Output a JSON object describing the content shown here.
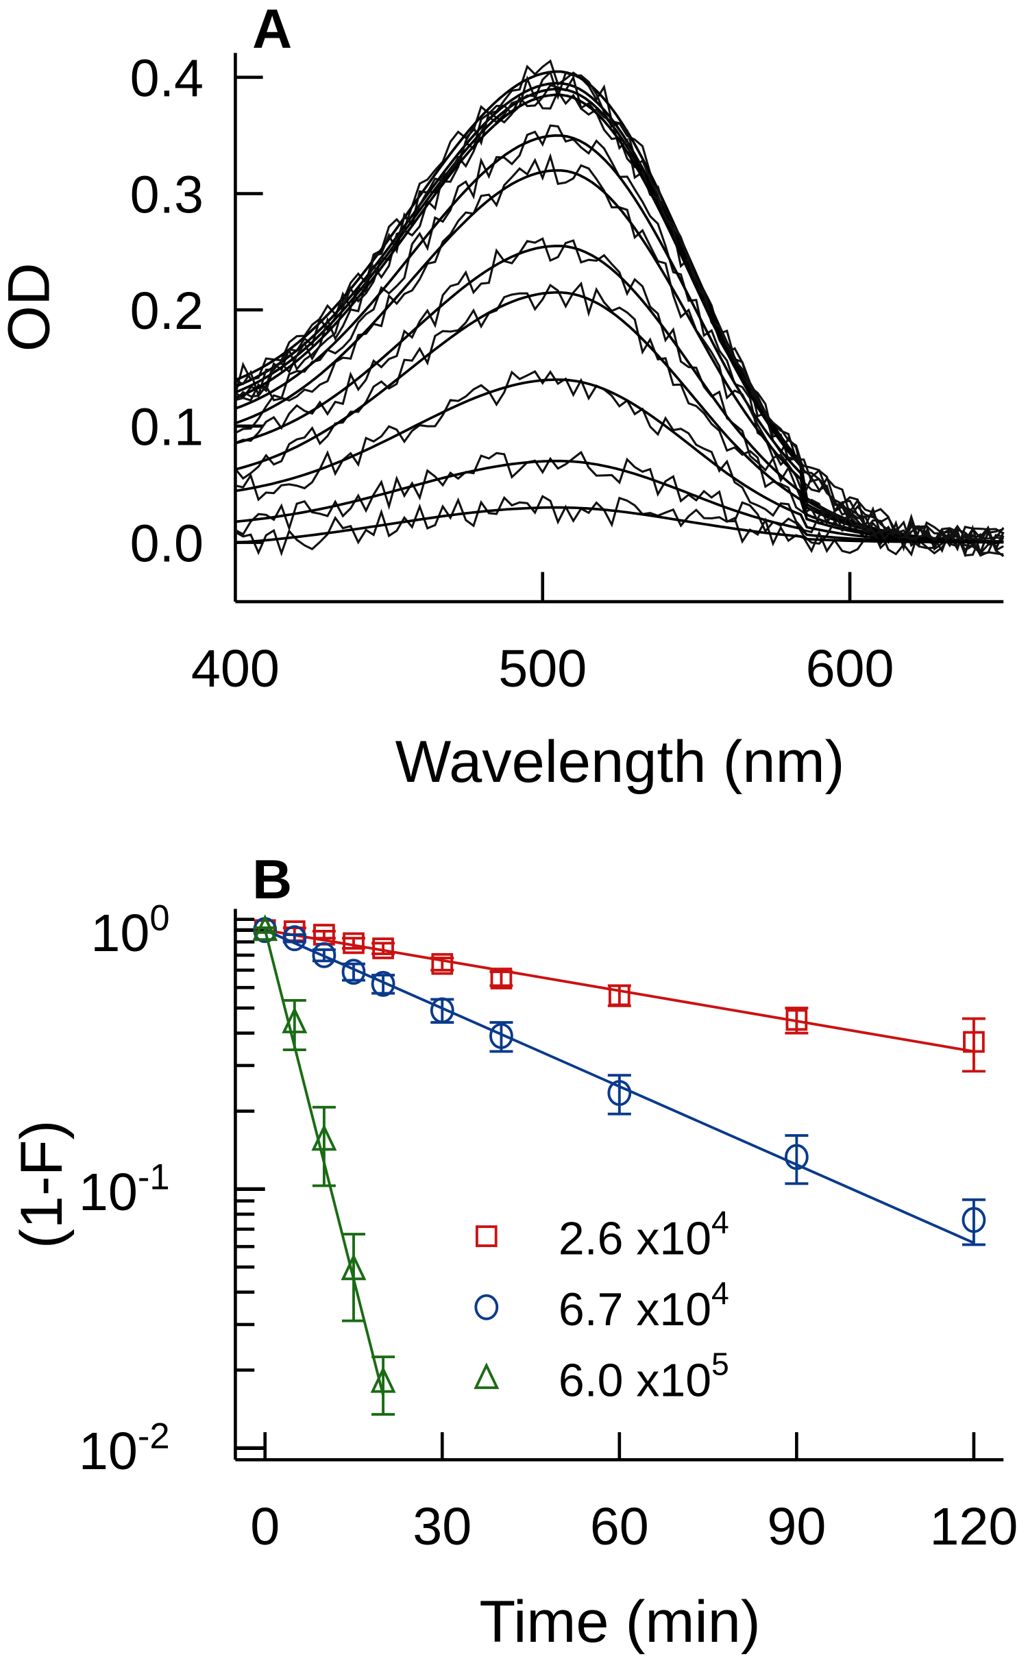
{
  "chart_data": [
    {
      "panel": "A",
      "type": "line",
      "xlabel": "Wavelength (nm)",
      "ylabel": "OD",
      "xlim": [
        400,
        650
      ],
      "ylim": [
        -0.05,
        0.42
      ],
      "xticks": [
        "400",
        "500",
        "600"
      ],
      "yticks": [
        "0.0",
        "0.1",
        "0.2",
        "0.3",
        "0.4"
      ],
      "peak_nm": 505,
      "series": [
        {
          "amplitude": 0.405,
          "baseline_400": 0.1
        },
        {
          "amplitude": 0.395,
          "baseline_400": 0.095
        },
        {
          "amplitude": 0.39,
          "baseline_400": 0.09
        },
        {
          "amplitude": 0.385,
          "baseline_400": 0.085
        },
        {
          "amplitude": 0.35,
          "baseline_400": 0.08
        },
        {
          "amplitude": 0.32,
          "baseline_400": 0.07
        },
        {
          "amplitude": 0.255,
          "baseline_400": 0.06
        },
        {
          "amplitude": 0.215,
          "baseline_400": 0.04
        },
        {
          "amplitude": 0.14,
          "baseline_400": 0.03
        },
        {
          "amplitude": 0.07,
          "baseline_400": 0.01
        },
        {
          "amplitude": 0.03,
          "baseline_400": -0.005
        }
      ]
    },
    {
      "panel": "B",
      "type": "scatter",
      "xlabel": "Time (min)",
      "ylabel": "(1-F)",
      "yscale": "log",
      "xlim": [
        -5,
        125
      ],
      "ylim": [
        0.0085,
        1.2
      ],
      "xticks": [
        "0",
        "30",
        "60",
        "90",
        "120"
      ],
      "yticks": [
        {
          "base": "10",
          "exp": "0"
        },
        {
          "base": "10",
          "exp": "-1"
        },
        {
          "base": "10",
          "exp": "-2"
        }
      ],
      "legend_position": "bottom-right",
      "series": [
        {
          "name": "2.6 x10",
          "name_exp": "4",
          "marker": "square",
          "color": "#cc1111",
          "x": [
            0,
            5,
            10,
            15,
            20,
            30,
            40,
            60,
            90,
            120
          ],
          "y": [
            1.0,
            0.99,
            0.96,
            0.89,
            0.85,
            0.74,
            0.65,
            0.56,
            0.45,
            0.37
          ],
          "err": [
            0.02,
            0.03,
            0.03,
            0.04,
            0.04,
            0.04,
            0.04,
            0.05,
            0.05,
            0.085
          ],
          "fit": [
            1.0,
            0.34
          ]
        },
        {
          "name": "6.7 x10",
          "name_exp": "4",
          "marker": "circle",
          "color": "#0a3a8c",
          "x": [
            0,
            5,
            10,
            15,
            20,
            30,
            40,
            60,
            90,
            120
          ],
          "y": [
            1.0,
            0.93,
            0.8,
            0.69,
            0.62,
            0.49,
            0.39,
            0.235,
            0.133,
            0.076
          ],
          "err": [
            0.02,
            0.03,
            0.04,
            0.05,
            0.05,
            0.05,
            0.05,
            0.04,
            0.028,
            0.015
          ],
          "fit": [
            1.0,
            0.062
          ]
        },
        {
          "name": "6.0 x10",
          "name_exp": "5",
          "marker": "triangle",
          "color": "#1a6b14",
          "x": [
            0,
            5,
            10,
            15,
            20
          ],
          "y": [
            1.0,
            0.44,
            0.155,
            0.049,
            0.018
          ],
          "err": [
            0.02,
            0.095,
            0.052,
            0.018,
            0.0045
          ],
          "fit": [
            1.0,
            0.016
          ]
        }
      ]
    }
  ],
  "labels": {
    "panel_a": "A",
    "panel_b": "B"
  }
}
